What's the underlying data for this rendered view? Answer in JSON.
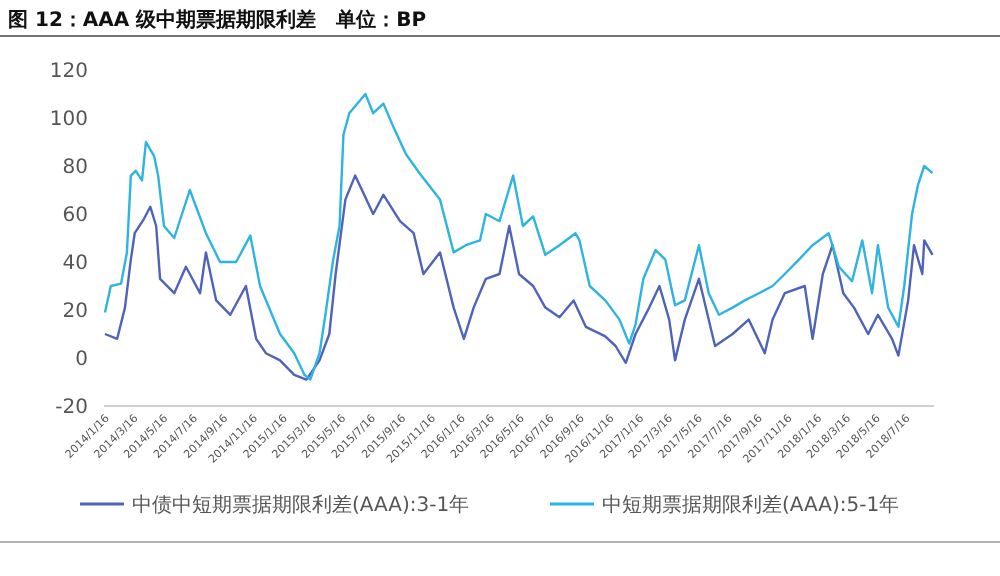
{
  "chart_data": {
    "type": "line",
    "title": "图 12：AAA 级中期票据期限利差　单位：BP",
    "xlim": [
      "2014-01-10",
      "2018-09-08"
    ],
    "xticks": [
      {
        "value": "2014-01-16",
        "label": "2014/1/16"
      },
      {
        "value": "2014-03-16",
        "label": "2014/3/16"
      },
      {
        "value": "2014-05-16",
        "label": "2014/5/16"
      },
      {
        "value": "2014-07-16",
        "label": "2014/7/16"
      },
      {
        "value": "2014-09-16",
        "label": "2014/9/16"
      },
      {
        "value": "2014-11-16",
        "label": "2014/11/16"
      },
      {
        "value": "2015-01-16",
        "label": "2015/1/16"
      },
      {
        "value": "2015-03-16",
        "label": "2015/3/16"
      },
      {
        "value": "2015-05-16",
        "label": "2015/5/16"
      },
      {
        "value": "2015-07-16",
        "label": "2015/7/16"
      },
      {
        "value": "2015-09-16",
        "label": "2015/9/16"
      },
      {
        "value": "2015-11-16",
        "label": "2015/11/16"
      },
      {
        "value": "2016-01-16",
        "label": "2016/1/16"
      },
      {
        "value": "2016-03-16",
        "label": "2016/3/16"
      },
      {
        "value": "2016-05-16",
        "label": "2016/5/16"
      },
      {
        "value": "2016-07-16",
        "label": "2016/7/16"
      },
      {
        "value": "2016-09-16",
        "label": "2016/9/16"
      },
      {
        "value": "2016-11-16",
        "label": "2016/11/16"
      },
      {
        "value": "2017-01-16",
        "label": "2017/1/16"
      },
      {
        "value": "2017-03-16",
        "label": "2017/3/16"
      },
      {
        "value": "2017-05-16",
        "label": "2017/5/16"
      },
      {
        "value": "2017-07-16",
        "label": "2017/7/16"
      },
      {
        "value": "2017-09-16",
        "label": "2017/9/16"
      },
      {
        "value": "2017-11-16",
        "label": "2017/11/16"
      },
      {
        "value": "2018-01-16",
        "label": "2018/1/16"
      },
      {
        "value": "2018-03-16",
        "label": "2018/3/16"
      },
      {
        "value": "2018-05-16",
        "label": "2018/5/16"
      },
      {
        "value": "2018-07-16",
        "label": "2018/7/16"
      }
    ],
    "ylim": [
      -20,
      120
    ],
    "yticks": [
      -20,
      0,
      20,
      40,
      60,
      80,
      100,
      120
    ],
    "grid": false,
    "legend": "bottom",
    "line_style": "solid",
    "series": [
      {
        "name": "中债中短期票据期限利差(AAA):3-1年",
        "color": "#4f63b8",
        "x": [
          "2014-01-12",
          "2014-02-06",
          "2014-02-22",
          "2014-03-06",
          "2014-03-14",
          "2014-04-02",
          "2014-04-15",
          "2014-04-27",
          "2014-05-05",
          "2014-06-03",
          "2014-06-27",
          "2014-07-26",
          "2014-08-07",
          "2014-08-28",
          "2014-09-26",
          "2014-10-28",
          "2014-11-18",
          "2014-12-08",
          "2015-01-06",
          "2015-02-04",
          "2015-03-01",
          "2015-03-28",
          "2015-04-17",
          "2015-04-30",
          "2015-05-20",
          "2015-06-09",
          "2015-07-16",
          "2015-08-06",
          "2015-09-09",
          "2015-10-07",
          "2015-10-27",
          "2015-11-30",
          "2015-12-28",
          "2016-01-18",
          "2016-02-07",
          "2016-03-03",
          "2016-03-31",
          "2016-04-20",
          "2016-05-10",
          "2016-06-08",
          "2016-07-03",
          "2016-08-01",
          "2016-08-30",
          "2016-09-24",
          "2016-11-03",
          "2016-11-24",
          "2016-12-15",
          "2017-01-04",
          "2017-02-01",
          "2017-02-22",
          "2017-03-14",
          "2017-03-26",
          "2017-04-15",
          "2017-05-14",
          "2017-06-16",
          "2017-07-22",
          "2017-08-24",
          "2017-09-26",
          "2017-10-12",
          "2017-11-06",
          "2017-12-17",
          "2018-01-02",
          "2018-01-23",
          "2018-02-12",
          "2018-03-06",
          "2018-03-28",
          "2018-04-26",
          "2018-05-16",
          "2018-06-14",
          "2018-06-27",
          "2018-07-17",
          "2018-07-29",
          "2018-08-15",
          "2018-08-19",
          "2018-09-05"
        ],
        "values": [
          10,
          8,
          21,
          41,
          52,
          58,
          63,
          55,
          33,
          27,
          38,
          27,
          44,
          24,
          18,
          30,
          8,
          2,
          -1,
          -7,
          -9,
          -1,
          10,
          35,
          66,
          76,
          60,
          68,
          57,
          52,
          35,
          44,
          21,
          8,
          21,
          33,
          35,
          55,
          35,
          30,
          21,
          17,
          24,
          13,
          9,
          5,
          -2,
          10,
          21,
          30,
          16,
          -1,
          16,
          33,
          5,
          10,
          16,
          2,
          16,
          27,
          30,
          8,
          35,
          47,
          27,
          21,
          10,
          18,
          8,
          1,
          24,
          47,
          35,
          49,
          43
        ]
      },
      {
        "name": "中短期票据期限利差(AAA):5-1年",
        "color": "#2db4e0",
        "x": [
          "2014-01-12",
          "2014-01-24",
          "2014-02-14",
          "2014-02-26",
          "2014-03-06",
          "2014-03-16",
          "2014-03-29",
          "2014-04-06",
          "2014-04-23",
          "2014-05-01",
          "2014-05-13",
          "2014-06-03",
          "2014-07-05",
          "2014-08-07",
          "2014-09-05",
          "2014-10-08",
          "2014-11-06",
          "2014-11-26",
          "2015-01-06",
          "2015-02-04",
          "2015-02-25",
          "2015-03-09",
          "2015-03-28",
          "2015-04-09",
          "2015-04-25",
          "2015-05-08",
          "2015-05-16",
          "2015-05-28",
          "2015-06-30",
          "2015-07-16",
          "2015-08-06",
          "2015-08-27",
          "2015-09-21",
          "2015-10-19",
          "2015-11-30",
          "2015-12-28",
          "2016-01-22",
          "2016-02-20",
          "2016-03-03",
          "2016-03-31",
          "2016-04-28",
          "2016-05-18",
          "2016-06-08",
          "2016-07-03",
          "2016-08-01",
          "2016-09-03",
          "2016-09-11",
          "2016-10-02",
          "2016-11-03",
          "2016-12-02",
          "2016-12-22",
          "2017-01-04",
          "2017-01-20",
          "2017-02-14",
          "2017-03-06",
          "2017-03-26",
          "2017-04-15",
          "2017-05-14",
          "2017-06-03",
          "2017-06-24",
          "2017-07-22",
          "2017-08-16",
          "2017-09-14",
          "2017-10-12",
          "2017-11-06",
          "2017-12-05",
          "2018-01-02",
          "2018-02-04",
          "2018-02-25",
          "2018-03-24",
          "2018-04-14",
          "2018-05-04",
          "2018-05-16",
          "2018-06-06",
          "2018-06-27",
          "2018-07-09",
          "2018-07-25",
          "2018-08-06",
          "2018-08-19",
          "2018-09-05"
        ],
        "values": [
          19,
          30,
          31,
          44,
          76,
          78,
          74,
          90,
          84,
          76,
          55,
          50,
          70,
          52,
          40,
          40,
          51,
          30,
          10,
          2,
          -7,
          -9,
          2,
          18,
          41,
          55,
          93,
          102,
          110,
          102,
          106,
          96,
          85,
          77,
          66,
          44,
          47,
          49,
          60,
          57,
          76,
          55,
          59,
          43,
          47,
          52,
          49,
          30,
          24,
          16,
          6,
          14,
          33,
          45,
          41,
          22,
          24,
          47,
          27,
          18,
          21,
          24,
          27,
          30,
          35,
          41,
          47,
          52,
          38,
          32,
          49,
          27,
          47,
          21,
          13,
          30,
          60,
          72,
          80,
          77
        ]
      }
    ]
  }
}
